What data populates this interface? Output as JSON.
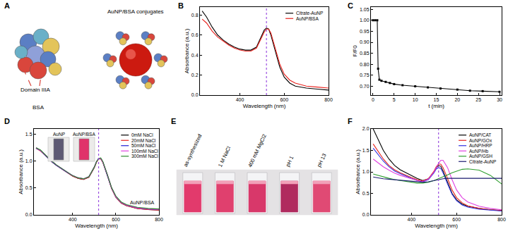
{
  "chart_data": [
    {
      "type": "diagram",
      "title": "A",
      "labels": {
        "domain": "Domain IIIA",
        "structure": "BSA",
        "conjugate": "AuNP/BSA conjugates"
      }
    },
    {
      "type": "line",
      "title": "B",
      "x_label": "Wavelength (nm)",
      "y_label": "Absorbance (a.u.)",
      "x": [
        230,
        250,
        275,
        300,
        325,
        350,
        375,
        400,
        425,
        450,
        475,
        500,
        510,
        520,
        530,
        540,
        560,
        580,
        600,
        625,
        650,
        700,
        750,
        800
      ],
      "xlim": [
        220,
        800
      ],
      "xticks": [
        400,
        600,
        800
      ],
      "ylim": [
        0,
        0.88
      ],
      "yticks": [
        {
          "value": 0,
          "label": "0.0"
        },
        0.2,
        0.4,
        0.6,
        0.8
      ],
      "grid": false,
      "legend": "upper right",
      "series": [
        {
          "name": "Citrate-AuNP",
          "color": "#000000",
          "values": [
            0.84,
            0.78,
            0.68,
            0.6,
            0.55,
            0.51,
            0.48,
            0.46,
            0.45,
            0.45,
            0.48,
            0.6,
            0.65,
            0.67,
            0.66,
            0.6,
            0.44,
            0.28,
            0.18,
            0.12,
            0.09,
            0.07,
            0.06,
            0.05
          ]
        },
        {
          "name": "AuNP/BSA",
          "color": "#e8211c",
          "values": [
            0.76,
            0.72,
            0.64,
            0.58,
            0.54,
            0.5,
            0.47,
            0.45,
            0.44,
            0.44,
            0.47,
            0.58,
            0.63,
            0.66,
            0.66,
            0.62,
            0.47,
            0.31,
            0.21,
            0.15,
            0.12,
            0.09,
            0.08,
            0.07
          ]
        },
        {
          "type": "vline",
          "x": [
            520
          ],
          "color": "#9b4fe0",
          "line_style": "dotted"
        }
      ]
    },
    {
      "type": "line",
      "title": "C",
      "x_label": "t (min)",
      "y_label": "F/F0",
      "x": [
        0,
        0.5,
        1,
        1.2,
        1.5,
        2,
        3,
        4,
        5,
        7,
        10,
        13,
        16,
        20,
        23,
        26,
        30
      ],
      "xlim": [
        -0.5,
        30.5
      ],
      "xticks": [
        0,
        5,
        10,
        15,
        20,
        25,
        30
      ],
      "ylim": [
        0.66,
        1.06
      ],
      "yticks": [
        {
          "value": 0.7,
          "label": "0.70"
        },
        0.75,
        {
          "value": 0.8,
          "label": "0.80"
        },
        0.85,
        {
          "value": 0.9,
          "label": "0.90"
        },
        0.95,
        {
          "value": 1.0,
          "label": "1.00"
        },
        1.05
      ],
      "grid": false,
      "series": [
        {
          "color": "#000000",
          "marker": "square",
          "values": [
            1.0,
            1.0,
            1.0,
            0.78,
            0.73,
            0.725,
            0.72,
            0.715,
            0.71,
            0.705,
            0.7,
            0.695,
            0.69,
            0.685,
            0.68,
            0.678,
            0.675
          ]
        }
      ]
    },
    {
      "type": "line",
      "title": "D",
      "x_label": "Wavelength (nm)",
      "y_label": "Absorbance (a.u.)",
      "x": [
        230,
        250,
        275,
        300,
        325,
        350,
        375,
        400,
        425,
        450,
        475,
        500,
        510,
        520,
        530,
        540,
        560,
        580,
        600,
        625,
        650,
        700,
        750,
        800
      ],
      "xlim": [
        220,
        800
      ],
      "xticks": [
        400,
        600,
        800
      ],
      "ylim": [
        0,
        1.6
      ],
      "yticks": [
        {
          "value": 0,
          "label": "0.0"
        },
        0.5,
        {
          "value": 1.0,
          "label": "1.0"
        },
        1.5
      ],
      "grid": false,
      "legend": "upper right",
      "annotations": [
        "AuNP/BSA"
      ],
      "insets": [
        {
          "label": "AuNP",
          "color": "#5e5a74"
        },
        {
          "label": "AuNP/BSA",
          "color": "#e0336a"
        }
      ],
      "series": [
        {
          "name": "0mM NaCl",
          "color": "#000000",
          "values": [
            1.25,
            1.2,
            1.1,
            1.0,
            0.92,
            0.85,
            0.78,
            0.72,
            0.68,
            0.66,
            0.7,
            0.88,
            0.98,
            1.04,
            1.05,
            0.98,
            0.75,
            0.5,
            0.33,
            0.22,
            0.17,
            0.12,
            0.1,
            0.09
          ]
        },
        {
          "name": "20mM NaCl",
          "color": "#e8211c",
          "values": [
            1.24,
            1.19,
            1.1,
            1.0,
            0.92,
            0.85,
            0.78,
            0.72,
            0.68,
            0.66,
            0.7,
            0.88,
            0.98,
            1.04,
            1.04,
            0.97,
            0.74,
            0.49,
            0.33,
            0.22,
            0.17,
            0.12,
            0.1,
            0.09
          ]
        },
        {
          "name": "50mM NaCl",
          "color": "#1f1fd6",
          "values": [
            1.24,
            1.2,
            1.1,
            1.0,
            0.92,
            0.85,
            0.79,
            0.73,
            0.69,
            0.67,
            0.71,
            0.89,
            0.99,
            1.05,
            1.05,
            0.98,
            0.75,
            0.5,
            0.34,
            0.23,
            0.18,
            0.13,
            0.11,
            0.1
          ]
        },
        {
          "name": "100mM NaCl",
          "color": "#e040e0",
          "values": [
            1.25,
            1.2,
            1.11,
            1.01,
            0.93,
            0.86,
            0.79,
            0.73,
            0.69,
            0.67,
            0.71,
            0.89,
            0.99,
            1.04,
            1.05,
            0.98,
            0.76,
            0.51,
            0.34,
            0.23,
            0.18,
            0.13,
            0.11,
            0.1
          ]
        },
        {
          "name": "300mM NaCl",
          "color": "#2e8b2e",
          "values": [
            1.25,
            1.21,
            1.11,
            1.01,
            0.93,
            0.86,
            0.79,
            0.73,
            0.69,
            0.67,
            0.71,
            0.89,
            0.99,
            1.05,
            1.06,
            0.99,
            0.76,
            0.51,
            0.35,
            0.24,
            0.19,
            0.14,
            0.12,
            0.11
          ]
        },
        {
          "type": "vline",
          "x": [
            520
          ],
          "color": "#9b4fe0",
          "line_style": "dotted"
        }
      ]
    },
    {
      "type": "photo",
      "title": "E",
      "categories": [
        "as-synthesized",
        "1 M NaCl",
        "400 mM MgCl2",
        "pH 1",
        "pH 13"
      ],
      "colors": [
        "#e23a6c",
        "#e0406e",
        "#d8386a",
        "#b02a5e",
        "#e04a74"
      ]
    },
    {
      "type": "line",
      "title": "F",
      "x_label": "Wavelength (nm)",
      "y_label": "Absorbance (a.u.)",
      "x": [
        230,
        250,
        275,
        300,
        325,
        350,
        375,
        400,
        425,
        450,
        475,
        500,
        510,
        520,
        530,
        540,
        560,
        580,
        600,
        625,
        650,
        700,
        750,
        800
      ],
      "xlim": [
        220,
        800
      ],
      "xticks": [
        400,
        600,
        800
      ],
      "ylim": [
        0,
        2.0
      ],
      "yticks": [
        {
          "value": 0,
          "label": "0.0"
        },
        0.5,
        {
          "value": 1.0,
          "label": "1.0"
        },
        1.5,
        {
          "value": 2.0,
          "label": "2.0"
        }
      ],
      "grid": false,
      "legend": "upper right",
      "series": [
        {
          "name": "AuNP/CAT",
          "color": "#000000",
          "values": [
            2.0,
            1.78,
            1.5,
            1.3,
            1.15,
            1.05,
            0.98,
            0.92,
            0.85,
            0.8,
            0.84,
            1.0,
            1.1,
            1.15,
            1.13,
            1.02,
            0.75,
            0.5,
            0.35,
            0.25,
            0.2,
            0.15,
            0.12,
            0.1
          ]
        },
        {
          "name": "AuNP/GOx",
          "color": "#e8211c",
          "values": [
            1.65,
            1.5,
            1.3,
            1.15,
            1.05,
            0.98,
            0.92,
            0.87,
            0.82,
            0.79,
            0.84,
            1.02,
            1.12,
            1.18,
            1.18,
            1.1,
            0.85,
            0.58,
            0.4,
            0.28,
            0.21,
            0.15,
            0.12,
            0.1
          ]
        },
        {
          "name": "AuNP/HRP",
          "color": "#3030e0",
          "values": [
            1.55,
            1.42,
            1.25,
            1.12,
            1.02,
            0.96,
            0.9,
            0.85,
            0.8,
            0.77,
            0.82,
            0.98,
            1.07,
            1.1,
            1.08,
            0.98,
            0.72,
            0.48,
            0.33,
            0.23,
            0.18,
            0.13,
            0.11,
            0.09
          ]
        },
        {
          "name": "AuNP/Hb",
          "color": "#e040e0",
          "values": [
            1.3,
            1.22,
            1.12,
            1.04,
            0.97,
            0.92,
            0.88,
            0.84,
            0.8,
            0.78,
            0.83,
            1.0,
            1.1,
            1.2,
            1.27,
            1.27,
            1.1,
            0.82,
            0.58,
            0.4,
            0.3,
            0.2,
            0.15,
            0.12
          ]
        },
        {
          "name": "AuNP/GSH",
          "color": "#2e9e2e",
          "values": [
            0.95,
            0.92,
            0.88,
            0.85,
            0.82,
            0.8,
            0.78,
            0.76,
            0.74,
            0.74,
            0.76,
            0.8,
            0.82,
            0.84,
            0.86,
            0.88,
            0.93,
            0.98,
            1.02,
            1.06,
            1.07,
            1.04,
            0.92,
            0.72
          ]
        },
        {
          "name": "Citrate-AuNP",
          "color": "#1a1a6e",
          "values": [
            0.88,
            0.86,
            0.84,
            0.83,
            0.82,
            0.81,
            0.8,
            0.79,
            0.78,
            0.76,
            0.77,
            0.8,
            0.81,
            0.82,
            0.83,
            0.84,
            0.85,
            0.85,
            0.85,
            0.85,
            0.85,
            0.85,
            0.85,
            0.85
          ]
        },
        {
          "type": "vline",
          "x": [
            520
          ],
          "color": "#9b4fe0",
          "line_style": "dotted"
        }
      ]
    }
  ]
}
